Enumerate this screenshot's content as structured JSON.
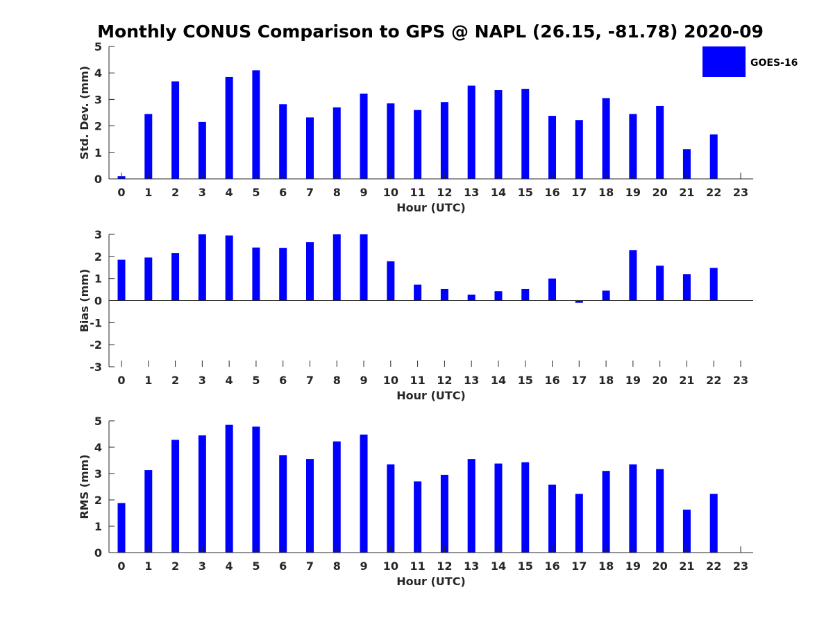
{
  "title": "Monthly CONUS Comparison to GPS @ NAPL (26.15, -81.78) 2020-09",
  "chart_data": [
    {
      "type": "bar",
      "ylabel": "Std. Dev. (mm)",
      "xlabel": "Hour (UTC)",
      "ylim": [
        0,
        5
      ],
      "yticks": [
        0,
        1,
        2,
        3,
        4,
        5
      ],
      "categories": [
        "0",
        "1",
        "2",
        "3",
        "4",
        "5",
        "6",
        "7",
        "8",
        "9",
        "10",
        "11",
        "12",
        "13",
        "14",
        "15",
        "16",
        "17",
        "18",
        "19",
        "20",
        "21",
        "22",
        "23"
      ],
      "series": [
        {
          "name": "GOES-16",
          "values": [
            0.1,
            2.45,
            3.68,
            2.15,
            3.85,
            4.1,
            2.82,
            2.32,
            2.7,
            3.22,
            2.85,
            2.6,
            2.9,
            3.52,
            3.35,
            3.4,
            2.38,
            2.22,
            3.05,
            2.45,
            2.75,
            1.12,
            1.68,
            null
          ]
        }
      ],
      "legend": "top-right",
      "grid": false
    },
    {
      "type": "bar",
      "ylabel": "Bias (mm)",
      "xlabel": "Hour (UTC)",
      "ylim": [
        -3,
        3
      ],
      "yticks": [
        -3,
        -2,
        -1,
        0,
        1,
        2,
        3
      ],
      "categories": [
        "0",
        "1",
        "2",
        "3",
        "4",
        "5",
        "6",
        "7",
        "8",
        "9",
        "10",
        "11",
        "12",
        "13",
        "14",
        "15",
        "16",
        "17",
        "18",
        "19",
        "20",
        "21",
        "22",
        "23"
      ],
      "series": [
        {
          "name": "GOES-16",
          "values": [
            1.85,
            1.95,
            2.15,
            3.0,
            2.95,
            2.4,
            2.38,
            2.65,
            3.0,
            3.0,
            1.78,
            0.72,
            0.52,
            0.27,
            0.42,
            0.52,
            1.0,
            -0.1,
            0.45,
            2.28,
            1.58,
            1.2,
            1.48,
            null
          ]
        }
      ],
      "grid": false
    },
    {
      "type": "bar",
      "ylabel": "RMS (mm)",
      "xlabel": "Hour (UTC)",
      "ylim": [
        0,
        5
      ],
      "yticks": [
        0,
        1,
        2,
        3,
        4,
        5
      ],
      "categories": [
        "0",
        "1",
        "2",
        "3",
        "4",
        "5",
        "6",
        "7",
        "8",
        "9",
        "10",
        "11",
        "12",
        "13",
        "14",
        "15",
        "16",
        "17",
        "18",
        "19",
        "20",
        "21",
        "22",
        "23"
      ],
      "series": [
        {
          "name": "GOES-16",
          "values": [
            1.88,
            3.13,
            4.28,
            4.45,
            4.85,
            4.78,
            3.7,
            3.55,
            4.22,
            4.48,
            3.35,
            2.7,
            2.95,
            3.55,
            3.38,
            3.43,
            2.58,
            2.23,
            3.1,
            3.35,
            3.17,
            1.63,
            2.23,
            null
          ]
        }
      ],
      "grid": false
    }
  ],
  "legend": {
    "label": "GOES-16",
    "color": "#0000ff"
  },
  "colors": {
    "bar": "#0000ff",
    "axis": "#262626",
    "text": "#262626"
  }
}
